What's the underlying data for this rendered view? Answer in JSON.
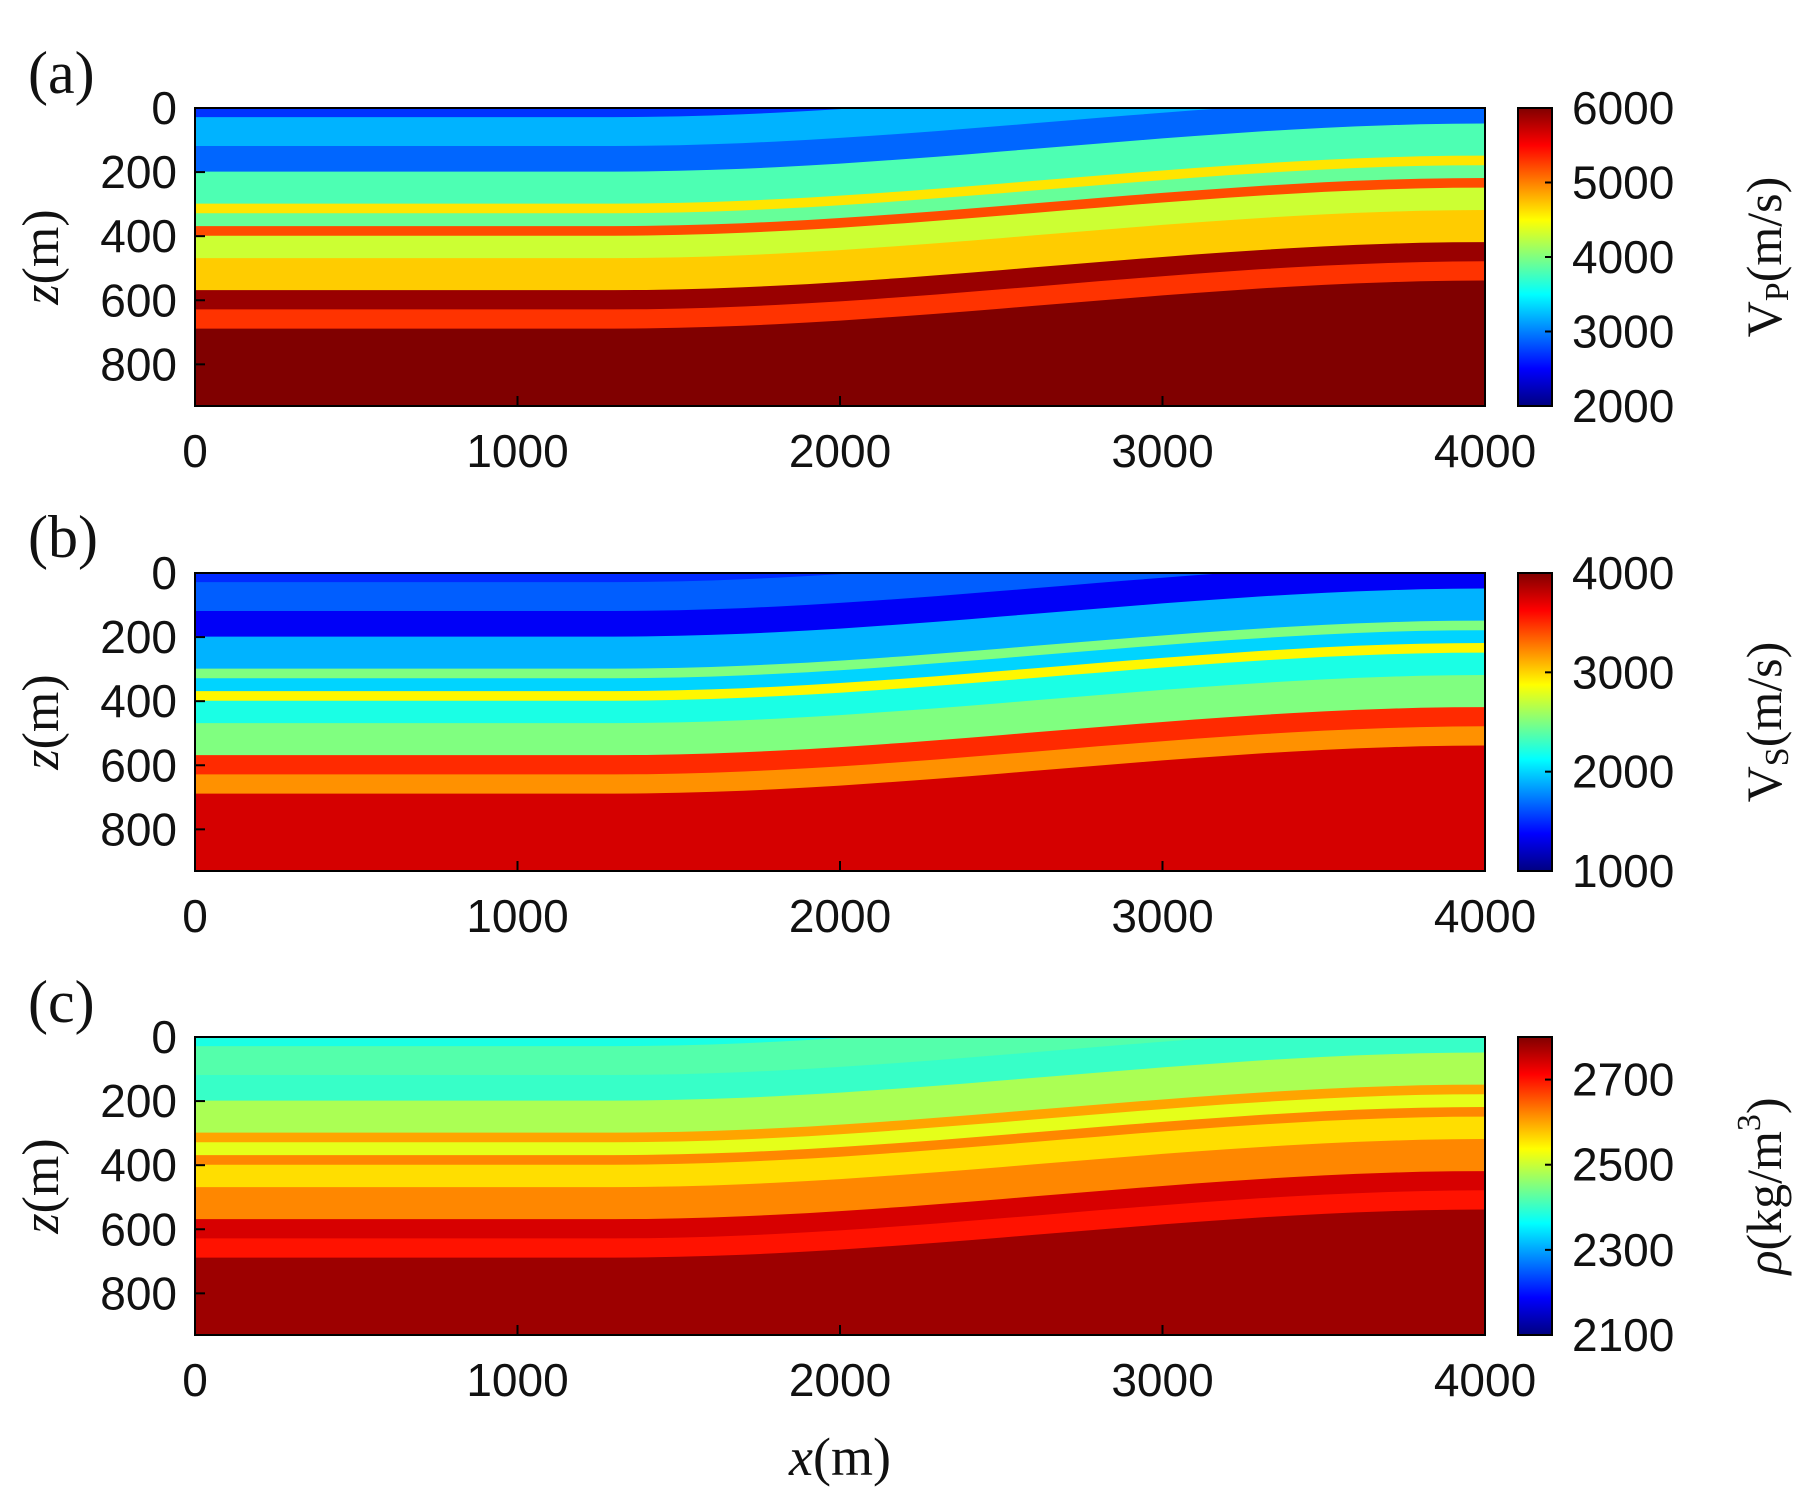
{
  "chart_data": [
    {
      "type": "heatmap",
      "panel_label": "(a)",
      "ylabel_var": "z",
      "ylabel_unit": "(m)",
      "xlim": [
        0,
        4000
      ],
      "ylim": [
        0,
        930
      ],
      "xticks": [
        0,
        1000,
        2000,
        3000,
        4000
      ],
      "yticks": [
        0,
        200,
        400,
        600,
        800
      ],
      "colorbar": {
        "min": 2000,
        "max": 6000,
        "ticks": [
          6000,
          5000,
          4000,
          3000,
          2000
        ],
        "label_base": "V",
        "label_sub": "P",
        "label_unit": "(m/s)"
      },
      "colormap": "jet",
      "layers": [
        {
          "z_top": 0,
          "value": 2700
        },
        {
          "z_top": 30,
          "value": 3200
        },
        {
          "z_top": 120,
          "value": 2900
        },
        {
          "z_top": 200,
          "value": 3800
        },
        {
          "z_top": 300,
          "value": 4600
        },
        {
          "z_top": 330,
          "value": 3900
        },
        {
          "z_top": 370,
          "value": 5200
        },
        {
          "z_top": 400,
          "value": 4300
        },
        {
          "z_top": 470,
          "value": 4700
        },
        {
          "z_top": 570,
          "value": 5900
        },
        {
          "z_top": 630,
          "value": 5300
        },
        {
          "z_top": 690,
          "value": 6300
        }
      ]
    },
    {
      "type": "heatmap",
      "panel_label": "(b)",
      "ylabel_var": "z",
      "ylabel_unit": "(m)",
      "xlim": [
        0,
        4000
      ],
      "ylim": [
        0,
        930
      ],
      "xticks": [
        0,
        1000,
        2000,
        3000,
        4000
      ],
      "yticks": [
        0,
        200,
        400,
        600,
        800
      ],
      "colorbar": {
        "min": 1000,
        "max": 4000,
        "ticks": [
          4000,
          3000,
          2000,
          1000
        ],
        "label_base": "V",
        "label_sub": "S",
        "label_unit": "(m/s)"
      },
      "colormap": "jet",
      "layers": [
        {
          "z_top": 0,
          "value": 1500
        },
        {
          "z_top": 30,
          "value": 1650
        },
        {
          "z_top": 120,
          "value": 1350
        },
        {
          "z_top": 200,
          "value": 1900
        },
        {
          "z_top": 300,
          "value": 2500
        },
        {
          "z_top": 330,
          "value": 2000
        },
        {
          "z_top": 370,
          "value": 2900
        },
        {
          "z_top": 400,
          "value": 2200
        },
        {
          "z_top": 470,
          "value": 2500
        },
        {
          "z_top": 570,
          "value": 3500
        },
        {
          "z_top": 630,
          "value": 3200
        },
        {
          "z_top": 690,
          "value": 3750
        }
      ]
    },
    {
      "type": "heatmap",
      "panel_label": "(c)",
      "ylabel_var": "z",
      "ylabel_unit": "(m)",
      "xlabel_var": "x",
      "xlabel_unit": "(m)",
      "xlim": [
        0,
        4000
      ],
      "ylim": [
        0,
        930
      ],
      "xticks": [
        0,
        1000,
        2000,
        3000,
        4000
      ],
      "yticks": [
        0,
        200,
        400,
        600,
        800
      ],
      "colorbar": {
        "min": 2100,
        "max": 2800,
        "ticks": [
          2700,
          2500,
          2300,
          2100
        ],
        "label_rho": "ρ",
        "label_unit_pre": "(kg/m",
        "label_sup": "3",
        "label_unit_post": ")"
      },
      "colormap": "jet",
      "layers": [
        {
          "z_top": 0,
          "value": 2380
        },
        {
          "z_top": 30,
          "value": 2420
        },
        {
          "z_top": 120,
          "value": 2400
        },
        {
          "z_top": 200,
          "value": 2480
        },
        {
          "z_top": 300,
          "value": 2600
        },
        {
          "z_top": 330,
          "value": 2520
        },
        {
          "z_top": 370,
          "value": 2620
        },
        {
          "z_top": 400,
          "value": 2560
        },
        {
          "z_top": 470,
          "value": 2620
        },
        {
          "z_top": 570,
          "value": 2740
        },
        {
          "z_top": 630,
          "value": 2700
        },
        {
          "z_top": 690,
          "value": 2780
        }
      ]
    }
  ]
}
